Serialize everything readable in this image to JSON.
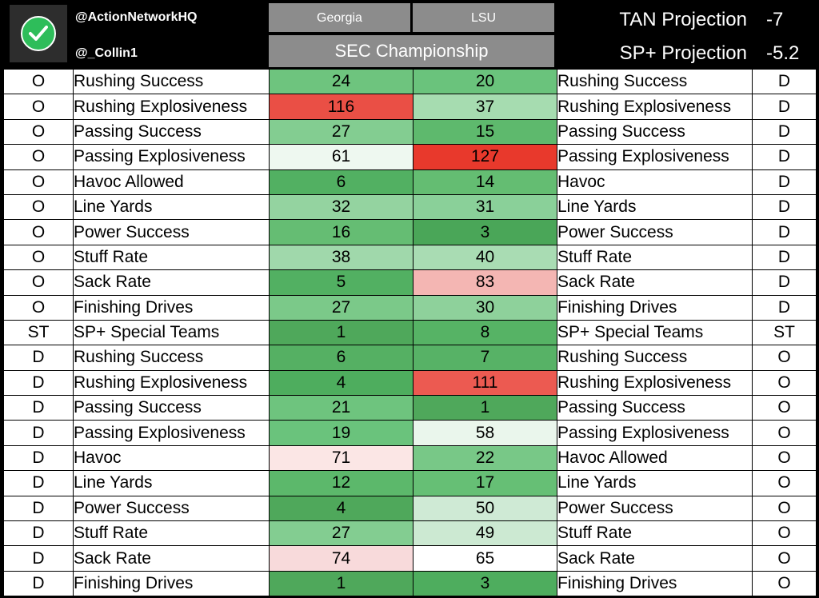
{
  "header": {
    "handle_1": "@ActionNetworkHQ",
    "handle_2": "@_Collin1",
    "team_left": "Georgia",
    "team_right": "LSU",
    "title": "SEC Championship",
    "projections": [
      {
        "label": "TAN Projection",
        "value": "-7"
      },
      {
        "label": "SP+ Projection",
        "value": "-5.2"
      }
    ]
  },
  "logo_icon": "checkmark-icon",
  "colors": {
    "header_bg": "#000000",
    "team_box": "#8c8c8c",
    "logo_green": "#2ebd5a",
    "good_dark": "#4fa85b",
    "bad_red": "#e8392c"
  },
  "rows": [
    {
      "l_side": "O",
      "l_metric": "Rushing Success",
      "georgia": "24",
      "lsu": "20",
      "r_metric": "Rushing Success",
      "r_side": "D",
      "gc": "#6ec47e",
      "lc": "#6ac37c"
    },
    {
      "l_side": "O",
      "l_metric": "Rushing Explosiveness",
      "georgia": "116",
      "lsu": "37",
      "r_metric": "Rushing Explosiveness",
      "r_side": "D",
      "gc": "#ea4f45",
      "lc": "#a6dcb0"
    },
    {
      "l_side": "O",
      "l_metric": "Passing Success",
      "georgia": "27",
      "lsu": "15",
      "r_metric": "Passing Success",
      "r_side": "D",
      "gc": "#83cd91",
      "lc": "#5eb96d"
    },
    {
      "l_side": "O",
      "l_metric": "Passing Explosiveness",
      "georgia": "61",
      "lsu": "127",
      "r_metric": "Passing Explosiveness",
      "r_side": "D",
      "gc": "#eef8f0",
      "lc": "#e8392c"
    },
    {
      "l_side": "O",
      "l_metric": "Havoc Allowed",
      "georgia": "6",
      "lsu": "14",
      "r_metric": "Havoc",
      "r_side": "D",
      "gc": "#52b062",
      "lc": "#64bd72"
    },
    {
      "l_side": "O",
      "l_metric": "Line Yards",
      "georgia": "32",
      "lsu": "31",
      "r_metric": "Line Yards",
      "r_side": "D",
      "gc": "#94d3a0",
      "lc": "#8ad099"
    },
    {
      "l_side": "O",
      "l_metric": "Power Success",
      "georgia": "16",
      "lsu": "3",
      "r_metric": "Power Success",
      "r_side": "D",
      "gc": "#65bd73",
      "lc": "#4aa658"
    },
    {
      "l_side": "O",
      "l_metric": "Stuff Rate",
      "georgia": "38",
      "lsu": "40",
      "r_metric": "Stuff Rate",
      "r_side": "D",
      "gc": "#a0d8ab",
      "lc": "#a9dcb3"
    },
    {
      "l_side": "O",
      "l_metric": "Sack Rate",
      "georgia": "5",
      "lsu": "83",
      "r_metric": "Sack Rate",
      "r_side": "D",
      "gc": "#52b062",
      "lc": "#f4b6b3"
    },
    {
      "l_side": "O",
      "l_metric": "Finishing Drives",
      "georgia": "27",
      "lsu": "30",
      "r_metric": "Finishing Drives",
      "r_side": "D",
      "gc": "#7bc989",
      "lc": "#8ed19b"
    },
    {
      "l_side": "ST",
      "l_metric": "SP+ Special Teams",
      "georgia": "1",
      "lsu": "8",
      "r_metric": "SP+ Special Teams",
      "r_side": "ST",
      "gc": "#4fa85b",
      "lc": "#56b365"
    },
    {
      "l_side": "D",
      "l_metric": "Rushing Success",
      "georgia": "6",
      "lsu": "7",
      "r_metric": "Rushing Success",
      "r_side": "O",
      "gc": "#55b063",
      "lc": "#57b266"
    },
    {
      "l_side": "D",
      "l_metric": "Rushing Explosiveness",
      "georgia": "4",
      "lsu": "111",
      "r_metric": "Rushing Explosiveness",
      "r_side": "O",
      "gc": "#4ead5e",
      "lc": "#ec5a51"
    },
    {
      "l_side": "D",
      "l_metric": "Passing Success",
      "georgia": "21",
      "lsu": "1",
      "r_metric": "Passing Success",
      "r_side": "O",
      "gc": "#6ec47e",
      "lc": "#4fa85b"
    },
    {
      "l_side": "D",
      "l_metric": "Passing Explosiveness",
      "georgia": "19",
      "lsu": "58",
      "r_metric": "Passing Explosiveness",
      "r_side": "O",
      "gc": "#6ac37c",
      "lc": "#eaf6ec"
    },
    {
      "l_side": "D",
      "l_metric": "Havoc",
      "georgia": "71",
      "lsu": "22",
      "r_metric": "Havoc Allowed",
      "r_side": "O",
      "gc": "#fbe6e5",
      "lc": "#78c887"
    },
    {
      "l_side": "D",
      "l_metric": "Line Yards",
      "georgia": "12",
      "lsu": "17",
      "r_metric": "Line Yards",
      "r_side": "O",
      "gc": "#5cb86b",
      "lc": "#66bf75"
    },
    {
      "l_side": "D",
      "l_metric": "Power Success",
      "georgia": "4",
      "lsu": "50",
      "r_metric": "Power Success",
      "r_side": "O",
      "gc": "#4fa85b",
      "lc": "#cfead5"
    },
    {
      "l_side": "D",
      "l_metric": "Stuff Rate",
      "georgia": "27",
      "lsu": "49",
      "r_metric": "Stuff Rate",
      "r_side": "O",
      "gc": "#83cd91",
      "lc": "#cce9d2"
    },
    {
      "l_side": "D",
      "l_metric": "Sack Rate",
      "georgia": "74",
      "lsu": "65",
      "r_metric": "Sack Rate",
      "r_side": "O",
      "gc": "#f8dadb",
      "lc": "#ffffff"
    },
    {
      "l_side": "D",
      "l_metric": "Finishing Drives",
      "georgia": "1",
      "lsu": "3",
      "r_metric": "Finishing Drives",
      "r_side": "O",
      "gc": "#4fa85b",
      "lc": "#4ead5e"
    }
  ]
}
